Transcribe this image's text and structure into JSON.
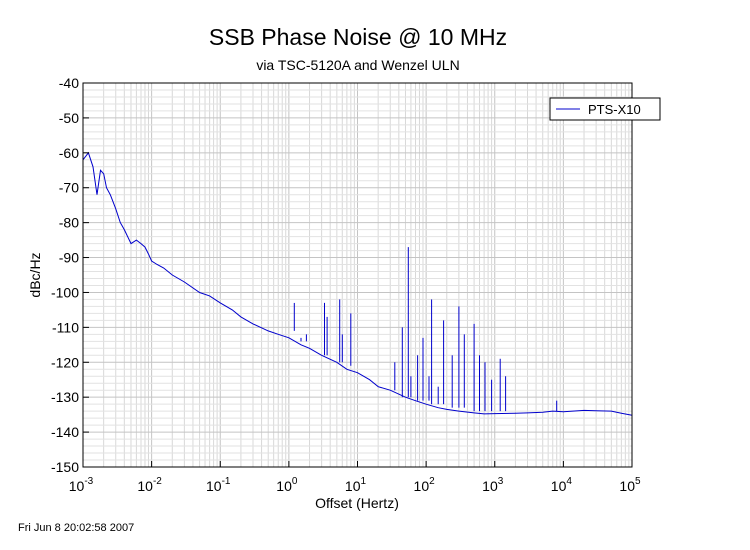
{
  "chart_data": {
    "type": "line",
    "title": "SSB Phase Noise @ 10 MHz",
    "subtitle": "via TSC-5120A and Wenzel ULN",
    "xlabel": "Offset (Hertz)",
    "ylabel": "dBc/Hz",
    "xscale": "log",
    "xlim": [
      0.001,
      100000
    ],
    "ylim": [
      -150,
      -40
    ],
    "x_tick_exponents": [
      -3,
      -2,
      -1,
      0,
      1,
      2,
      3,
      4,
      5
    ],
    "y_ticks": [
      -40,
      -50,
      -60,
      -70,
      -80,
      -90,
      -100,
      -110,
      -120,
      -130,
      -140,
      -150
    ],
    "grid": true,
    "legend_position": "top-right",
    "series": [
      {
        "name": "PTS-X10",
        "color": "#0000cc",
        "x": [
          0.001,
          0.0012,
          0.0014,
          0.0016,
          0.0018,
          0.002,
          0.0022,
          0.0025,
          0.003,
          0.0035,
          0.004,
          0.005,
          0.006,
          0.007,
          0.008,
          0.009,
          0.01,
          0.012,
          0.015,
          0.02,
          0.03,
          0.05,
          0.07,
          0.1,
          0.15,
          0.2,
          0.3,
          0.5,
          0.7,
          1,
          1.5,
          2,
          3,
          5,
          7,
          10,
          15,
          20,
          30,
          50,
          70,
          100,
          150,
          200,
          300,
          500,
          700,
          1000,
          2000,
          3000,
          5000,
          7000,
          10000,
          20000,
          30000,
          50000,
          70000,
          100000
        ],
        "y": [
          -62,
          -60,
          -64,
          -72,
          -65,
          -66,
          -70,
          -72,
          -76,
          -80,
          -82,
          -86,
          -85,
          -86,
          -87,
          -89,
          -91,
          -92,
          -93,
          -95,
          -97,
          -100,
          -101,
          -103,
          -105,
          -107,
          -109,
          -111,
          -112,
          -113,
          -115,
          -116,
          -118,
          -120,
          -122,
          -123,
          -125,
          -127,
          -128,
          -130,
          -131,
          -132,
          -133,
          -133.5,
          -134,
          -134.5,
          -134.8,
          -134.7,
          -134.6,
          -134.5,
          -134.3,
          -134,
          -134.2,
          -133.8,
          -133.9,
          -134,
          -134.6,
          -135.2
        ],
        "spurs": [
          {
            "x": 1.2,
            "peak": -103,
            "base": -111
          },
          {
            "x": 1.5,
            "peak": -113,
            "base": -114
          },
          {
            "x": 1.8,
            "peak": -112,
            "base": -114
          },
          {
            "x": 3.3,
            "peak": -103,
            "base": -118
          },
          {
            "x": 3.6,
            "peak": -107,
            "base": -118
          },
          {
            "x": 5.5,
            "peak": -102,
            "base": -120
          },
          {
            "x": 6.0,
            "peak": -112,
            "base": -120
          },
          {
            "x": 8.0,
            "peak": -106,
            "base": -121
          },
          {
            "x": 35,
            "peak": -120,
            "base": -128
          },
          {
            "x": 45,
            "peak": -110,
            "base": -130
          },
          {
            "x": 55,
            "peak": -87,
            "base": -130
          },
          {
            "x": 60,
            "peak": -124,
            "base": -130
          },
          {
            "x": 75,
            "peak": -118,
            "base": -131
          },
          {
            "x": 90,
            "peak": -113,
            "base": -131
          },
          {
            "x": 110,
            "peak": -124,
            "base": -131
          },
          {
            "x": 120,
            "peak": -102,
            "base": -132
          },
          {
            "x": 150,
            "peak": -127,
            "base": -132
          },
          {
            "x": 180,
            "peak": -108,
            "base": -132
          },
          {
            "x": 240,
            "peak": -118,
            "base": -133
          },
          {
            "x": 300,
            "peak": -104,
            "base": -133
          },
          {
            "x": 360,
            "peak": -112,
            "base": -133
          },
          {
            "x": 500,
            "peak": -109,
            "base": -134
          },
          {
            "x": 600,
            "peak": -118,
            "base": -134
          },
          {
            "x": 720,
            "peak": -120,
            "base": -134
          },
          {
            "x": 900,
            "peak": -125,
            "base": -134
          },
          {
            "x": 1200,
            "peak": -119,
            "base": -134
          },
          {
            "x": 1440,
            "peak": -124,
            "base": -134
          },
          {
            "x": 8000,
            "peak": -131,
            "base": -134
          }
        ]
      }
    ]
  },
  "footer": {
    "timestamp": "Fri Jun  8 20:02:58 2007"
  }
}
